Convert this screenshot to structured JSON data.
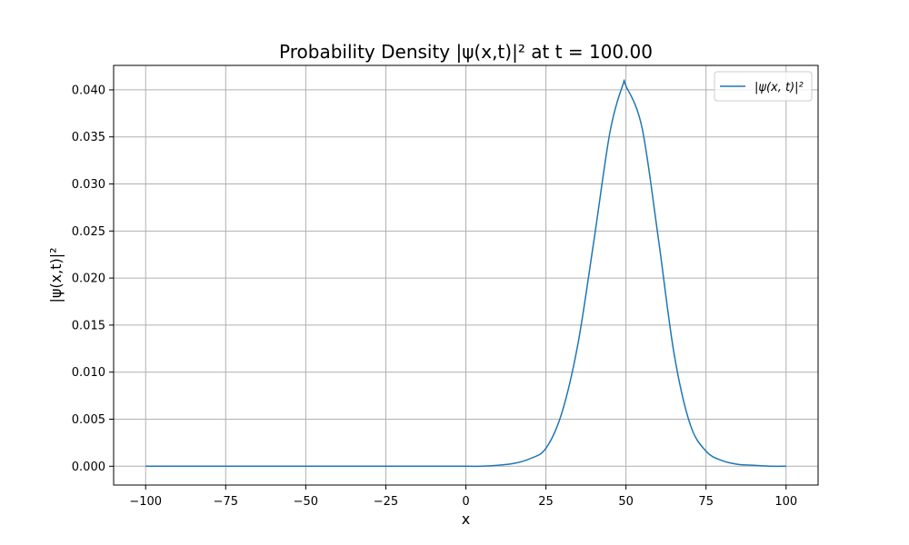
{
  "chart_data": {
    "type": "line",
    "title": "Probability Density |ψ(x,t)|² at t = 100.00",
    "xlabel": "x",
    "ylabel": "|ψ(x,t)|²",
    "xlim": [
      -110,
      110
    ],
    "ylim": [
      -0.002,
      0.0426
    ],
    "xticks": [
      -100,
      -75,
      -50,
      -25,
      0,
      25,
      50,
      75,
      100
    ],
    "xtick_labels": [
      "−100",
      "−75",
      "−50",
      "−25",
      "0",
      "25",
      "50",
      "75",
      "100"
    ],
    "yticks": [
      0,
      0.005,
      0.01,
      0.015,
      0.02,
      0.025,
      0.03,
      0.035,
      0.04
    ],
    "ytick_labels": [
      "0.000",
      "0.005",
      "0.010",
      "0.015",
      "0.020",
      "0.025",
      "0.030",
      "0.035",
      "0.040"
    ],
    "grid": true,
    "legend_position": "top-right",
    "series": [
      {
        "name": "|ψ(x, t)|²",
        "color": "#1f77b4",
        "x": [
          -100,
          -90,
          -80,
          -70,
          -60,
          -50,
          -40,
          -30,
          -20,
          -10,
          0,
          5,
          10,
          15,
          20,
          25,
          30,
          35,
          40,
          45,
          49,
          50,
          55,
          60,
          65,
          70,
          75,
          80,
          85,
          90,
          95,
          100
        ],
        "y": [
          0,
          0,
          0,
          0,
          0,
          0,
          0,
          0,
          0,
          0,
          0.0,
          0.0,
          0.0001,
          0.0003,
          0.0008,
          0.0019,
          0.0057,
          0.013,
          0.024,
          0.0355,
          0.0405,
          0.0404,
          0.036,
          0.0245,
          0.012,
          0.0045,
          0.0016,
          0.0006,
          0.0002,
          0.0001,
          0.0,
          0.0
        ]
      }
    ]
  }
}
